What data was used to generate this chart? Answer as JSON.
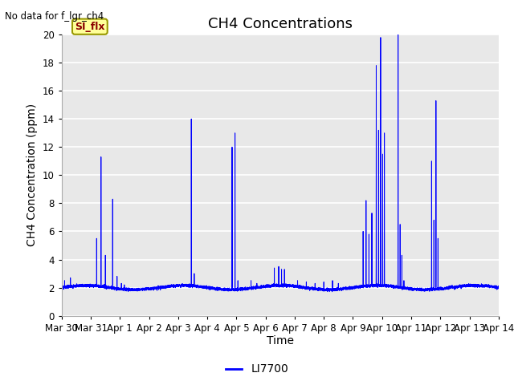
{
  "title": "CH4 Concentrations",
  "top_left_text": "No data for f_lgr_ch4",
  "xlabel": "Time",
  "ylabel": "CH4 Concentration (ppm)",
  "ylim": [
    0,
    20
  ],
  "yticks": [
    0,
    2,
    4,
    6,
    8,
    10,
    12,
    14,
    16,
    18,
    20
  ],
  "xtick_labels": [
    "Mar 30",
    "Mar 31",
    "Apr 1",
    "Apr 2",
    "Apr 3",
    "Apr 4",
    "Apr 5",
    "Apr 6",
    "Apr 7",
    "Apr 8",
    "Apr 9",
    "Apr 10",
    "Apr 11",
    "Apr 12",
    "Apr 13",
    "Apr 14"
  ],
  "line_color": "#0000FF",
  "line_label": "LI7700",
  "annotation_box_text": "SI_flx",
  "annotation_box_color": "#FFFF99",
  "annotation_box_edge_color": "#999900",
  "annotation_text_color": "#8B0000",
  "plot_bg_color": "#E8E8E8",
  "fig_bg_color": "#FFFFFF",
  "grid_color": "#FFFFFF",
  "title_fontsize": 13,
  "label_fontsize": 10,
  "tick_fontsize": 8.5,
  "legend_fontsize": 10
}
